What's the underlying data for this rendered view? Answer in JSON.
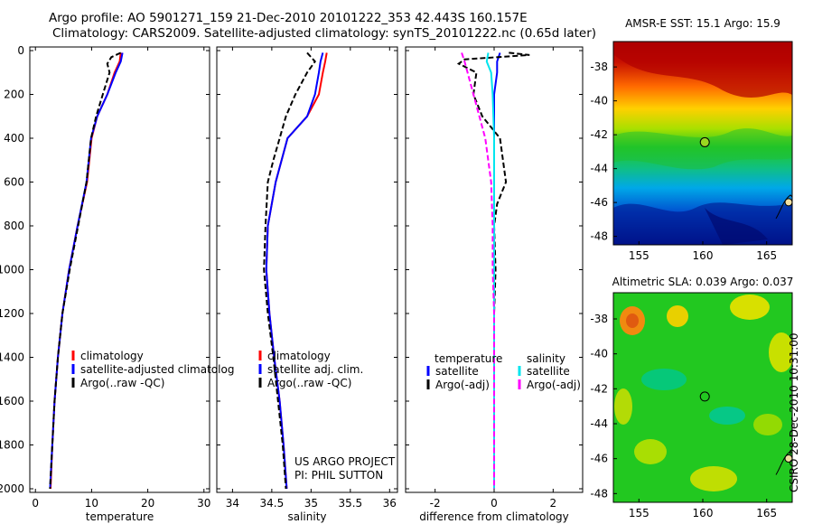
{
  "header": {
    "line1": "Argo profile: AO 5901271_159 21-Dec-2010 20101222_353 42.443S 160.157E",
    "line2": "Climatology: CARS2009. Satellite-adjusted climatology: synTS_20101222.nc (0.65d later)"
  },
  "side_label": "CSIRO 28-Dec-2010 10:31:00",
  "colors": {
    "climatology": "#ff0000",
    "satellite": "#0000ff",
    "argo": "#000000",
    "sal_satellite": "#00e5ee",
    "sal_argo": "#ff00ff"
  },
  "chart_data": [
    {
      "type": "line",
      "xlabel": "temperature",
      "xlim": [
        -1,
        31
      ],
      "ylim": [
        2000,
        0
      ],
      "invert_y": true,
      "xticks": [
        0,
        10,
        20,
        30
      ],
      "yticks": [
        0,
        200,
        400,
        600,
        800,
        1000,
        1200,
        1400,
        1600,
        1800,
        2000
      ],
      "legend": [
        "climatology",
        "satellite-adjusted climatolog",
        "Argo(..raw -QC)"
      ],
      "legend_position": "lower-right",
      "series": [
        {
          "name": "climatology",
          "color": "#ff0000",
          "dash": false,
          "points": [
            [
              15.2,
              10
            ],
            [
              15.0,
              50
            ],
            [
              14.1,
              100
            ],
            [
              12.8,
              200
            ],
            [
              11.0,
              300
            ],
            [
              10.0,
              400
            ],
            [
              9.2,
              600
            ],
            [
              7.5,
              800
            ],
            [
              6.0,
              1000
            ],
            [
              4.8,
              1200
            ],
            [
              4.0,
              1400
            ],
            [
              3.4,
              1600
            ],
            [
              3.0,
              1800
            ],
            [
              2.7,
              2000
            ]
          ]
        },
        {
          "name": "satellite-adjusted climatolog",
          "color": "#0000ff",
          "dash": false,
          "points": [
            [
              15.5,
              10
            ],
            [
              15.2,
              50
            ],
            [
              14.3,
              100
            ],
            [
              12.8,
              200
            ],
            [
              11.0,
              300
            ],
            [
              9.9,
              400
            ],
            [
              9.1,
              600
            ],
            [
              7.5,
              800
            ],
            [
              6.0,
              1000
            ],
            [
              4.8,
              1200
            ],
            [
              4.0,
              1400
            ],
            [
              3.4,
              1600
            ],
            [
              3.0,
              1800
            ],
            [
              2.6,
              2000
            ]
          ]
        },
        {
          "name": "Argo(..raw -QC)",
          "color": "#000000",
          "dash": true,
          "points": [
            [
              15.2,
              10
            ],
            [
              13.5,
              30
            ],
            [
              12.8,
              60
            ],
            [
              13.2,
              100
            ],
            [
              12.0,
              200
            ],
            [
              10.8,
              300
            ],
            [
              9.9,
              400
            ],
            [
              9.1,
              600
            ],
            [
              7.6,
              800
            ],
            [
              6.1,
              1000
            ],
            [
              4.8,
              1200
            ],
            [
              4.0,
              1400
            ],
            [
              3.4,
              1600
            ],
            [
              3.0,
              1800
            ],
            [
              2.6,
              2000
            ]
          ]
        }
      ]
    },
    {
      "type": "line",
      "xlabel": "salinity",
      "xlim": [
        33.8,
        36.1
      ],
      "ylim": [
        2000,
        0
      ],
      "invert_y": true,
      "xticks": [
        34,
        34.5,
        35,
        35.5,
        36
      ],
      "yticks": [
        0,
        200,
        400,
        600,
        800,
        1000,
        1200,
        1400,
        1600,
        1800,
        2000
      ],
      "legend": [
        "climatology",
        "satellite adj. clim.",
        "Argo(..raw -QC)"
      ],
      "legend_position": "lower-right",
      "annotation": [
        "US ARGO PROJECT",
        "PI: PHIL SUTTON"
      ],
      "series": [
        {
          "name": "climatology",
          "color": "#ff0000",
          "dash": false,
          "points": [
            [
              35.2,
              10
            ],
            [
              35.18,
              50
            ],
            [
              35.15,
              100
            ],
            [
              35.1,
              200
            ],
            [
              34.95,
              300
            ],
            [
              34.7,
              400
            ],
            [
              34.55,
              600
            ],
            [
              34.45,
              800
            ],
            [
              34.43,
              1000
            ],
            [
              34.47,
              1200
            ],
            [
              34.53,
              1400
            ],
            [
              34.6,
              1600
            ],
            [
              34.65,
              1800
            ],
            [
              34.69,
              2000
            ]
          ]
        },
        {
          "name": "satellite adj. clim.",
          "color": "#0000ff",
          "dash": false,
          "points": [
            [
              35.15,
              10
            ],
            [
              35.12,
              50
            ],
            [
              35.1,
              100
            ],
            [
              35.05,
              200
            ],
            [
              34.95,
              300
            ],
            [
              34.7,
              400
            ],
            [
              34.55,
              600
            ],
            [
              34.45,
              800
            ],
            [
              34.43,
              1000
            ],
            [
              34.47,
              1200
            ],
            [
              34.53,
              1400
            ],
            [
              34.6,
              1600
            ],
            [
              34.65,
              1800
            ],
            [
              34.69,
              2000
            ]
          ]
        },
        {
          "name": "Argo(..raw -QC)",
          "color": "#000000",
          "dash": true,
          "points": [
            [
              34.95,
              10
            ],
            [
              35.05,
              50
            ],
            [
              34.95,
              100
            ],
            [
              34.8,
              200
            ],
            [
              34.68,
              300
            ],
            [
              34.6,
              400
            ],
            [
              34.52,
              500
            ],
            [
              34.45,
              600
            ],
            [
              34.42,
              800
            ],
            [
              34.4,
              1000
            ],
            [
              34.45,
              1200
            ],
            [
              34.52,
              1400
            ],
            [
              34.58,
              1600
            ],
            [
              34.64,
              1800
            ],
            [
              34.68,
              2000
            ]
          ]
        }
      ]
    },
    {
      "type": "line",
      "xlabel": "difference from climatology",
      "xlim": [
        -3,
        3
      ],
      "ylim": [
        2000,
        0
      ],
      "invert_y": true,
      "xticks": [
        -2,
        0,
        2
      ],
      "yticks": [
        0,
        200,
        400,
        600,
        800,
        1000,
        1200,
        1400,
        1600,
        1800,
        2000
      ],
      "legend_headers": [
        "temperature",
        "salinity"
      ],
      "legend": [
        "satellite",
        "Argo(-adj)",
        "satellite",
        "Argo(-adj)"
      ],
      "legend_position": "lower-right",
      "series": [
        {
          "name": "satellite",
          "group": "temperature",
          "color": "#0000ff",
          "dash": false,
          "points": [
            [
              0.2,
              10
            ],
            [
              0.1,
              50
            ],
            [
              0.1,
              100
            ],
            [
              0,
              200
            ],
            [
              0,
              400
            ],
            [
              0,
              600
            ],
            [
              0,
              800
            ],
            [
              0,
              1000
            ],
            [
              0,
              1200
            ],
            [
              0,
              1400
            ],
            [
              0,
              1600
            ],
            [
              0,
              1800
            ],
            [
              0,
              2000
            ]
          ]
        },
        {
          "name": "Argo(-adj)",
          "group": "temperature",
          "color": "#000000",
          "dash": true,
          "points": [
            [
              0.5,
              10
            ],
            [
              1.2,
              20
            ],
            [
              -1.0,
              40
            ],
            [
              -1.2,
              60
            ],
            [
              -0.6,
              100
            ],
            [
              -0.7,
              200
            ],
            [
              -0.4,
              300
            ],
            [
              0.2,
              400
            ],
            [
              0.3,
              500
            ],
            [
              0.4,
              600
            ],
            [
              0.1,
              700
            ],
            [
              0,
              800
            ],
            [
              0.05,
              1000
            ],
            [
              0,
              1200
            ],
            [
              0,
              1400
            ],
            [
              0,
              1600
            ],
            [
              0,
              1800
            ],
            [
              0,
              2000
            ]
          ]
        },
        {
          "name": "satellite",
          "group": "salinity",
          "color": "#00e5ee",
          "dash": false,
          "points": [
            [
              -0.2,
              10
            ],
            [
              -0.25,
              50
            ],
            [
              -0.1,
              100
            ],
            [
              -0.05,
              200
            ],
            [
              0,
              400
            ],
            [
              0,
              600
            ],
            [
              0,
              800
            ],
            [
              0,
              1000
            ],
            [
              0,
              1200
            ],
            [
              0,
              1400
            ],
            [
              0,
              1600
            ],
            [
              0,
              1800
            ],
            [
              0,
              2000
            ]
          ]
        },
        {
          "name": "Argo(-adj)",
          "group": "salinity",
          "color": "#ff00ff",
          "dash": true,
          "points": [
            [
              -1.1,
              10
            ],
            [
              -1.0,
              50
            ],
            [
              -0.9,
              100
            ],
            [
              -0.7,
              200
            ],
            [
              -0.3,
              400
            ],
            [
              -0.1,
              600
            ],
            [
              -0.05,
              800
            ],
            [
              -0.05,
              1000
            ],
            [
              0,
              1200
            ],
            [
              0,
              1400
            ],
            [
              0,
              1600
            ],
            [
              0,
              1800
            ],
            [
              0,
              2000
            ]
          ]
        }
      ]
    },
    {
      "type": "heatmap",
      "title": "AMSR-E SST: 15.1 Argo: 15.9",
      "xlim": [
        153,
        167
      ],
      "ylim": [
        -48.5,
        -36.5
      ],
      "xticks": [
        155,
        160,
        165
      ],
      "yticks": [
        -38,
        -40,
        -42,
        -44,
        -46,
        -48
      ],
      "marker": {
        "lon": 160.157,
        "lat": -42.443
      }
    },
    {
      "type": "heatmap",
      "title": "Altimetric SLA: 0.039 Argo: 0.037",
      "xlim": [
        153,
        167
      ],
      "ylim": [
        -48.5,
        -36.5
      ],
      "xticks": [
        155,
        160,
        165
      ],
      "yticks": [
        -38,
        -40,
        -42,
        -44,
        -46,
        -48
      ],
      "marker": {
        "lon": 160.157,
        "lat": -42.443
      }
    }
  ]
}
